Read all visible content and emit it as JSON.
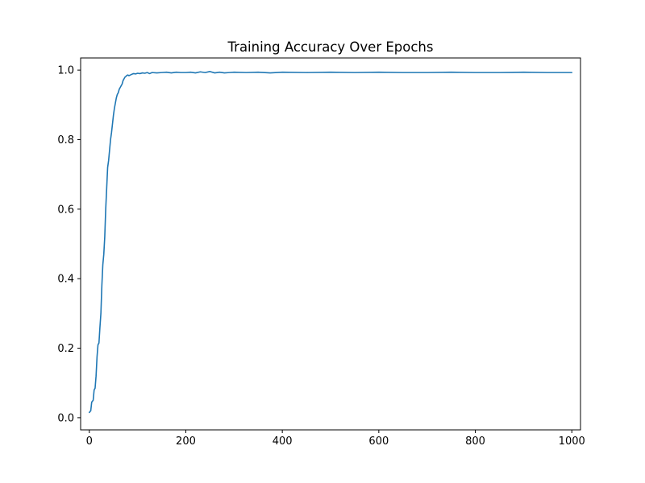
{
  "chart_data": {
    "type": "line",
    "title": "Training Accuracy Over Epochs",
    "xlabel": "",
    "ylabel": "",
    "xlim": [
      -18,
      1018
    ],
    "ylim": [
      -0.035,
      1.035
    ],
    "x_ticks": [
      0,
      200,
      400,
      600,
      800,
      1000
    ],
    "y_ticks": [
      0.0,
      0.2,
      0.4,
      0.6,
      0.8,
      1.0
    ],
    "x_tick_labels": [
      "0",
      "200",
      "400",
      "600",
      "800",
      "1000"
    ],
    "y_tick_labels": [
      "0.0",
      "0.2",
      "0.4",
      "0.6",
      "0.8",
      "1.0"
    ],
    "grid": false,
    "legend": "none",
    "series": [
      {
        "color": "#1f77b4",
        "x": [
          0,
          3,
          5,
          8,
          10,
          12,
          14,
          16,
          18,
          20,
          22,
          24,
          26,
          28,
          30,
          32,
          34,
          36,
          38,
          40,
          42,
          44,
          46,
          48,
          50,
          52,
          54,
          56,
          58,
          60,
          62,
          64,
          66,
          68,
          70,
          72,
          74,
          76,
          78,
          80,
          82,
          85,
          88,
          92,
          96,
          100,
          105,
          110,
          115,
          120,
          125,
          130,
          140,
          150,
          160,
          170,
          180,
          190,
          200,
          210,
          220,
          230,
          240,
          250,
          260,
          270,
          280,
          290,
          300,
          325,
          350,
          375,
          400,
          450,
          500,
          550,
          600,
          650,
          700,
          750,
          800,
          850,
          900,
          950,
          1000
        ],
        "y": [
          0.015,
          0.02,
          0.045,
          0.05,
          0.08,
          0.085,
          0.12,
          0.175,
          0.21,
          0.215,
          0.26,
          0.3,
          0.38,
          0.44,
          0.47,
          0.52,
          0.6,
          0.66,
          0.72,
          0.74,
          0.77,
          0.8,
          0.82,
          0.845,
          0.87,
          0.89,
          0.905,
          0.92,
          0.93,
          0.935,
          0.945,
          0.95,
          0.955,
          0.96,
          0.97,
          0.975,
          0.98,
          0.982,
          0.985,
          0.986,
          0.984,
          0.986,
          0.988,
          0.99,
          0.989,
          0.991,
          0.99,
          0.992,
          0.991,
          0.993,
          0.99,
          0.993,
          0.992,
          0.993,
          0.994,
          0.992,
          0.994,
          0.993,
          0.993,
          0.994,
          0.992,
          0.995,
          0.993,
          0.996,
          0.992,
          0.994,
          0.992,
          0.993,
          0.994,
          0.993,
          0.994,
          0.992,
          0.994,
          0.993,
          0.994,
          0.993,
          0.994,
          0.993,
          0.993,
          0.994,
          0.993,
          0.993,
          0.994,
          0.993,
          0.993
        ]
      }
    ]
  }
}
